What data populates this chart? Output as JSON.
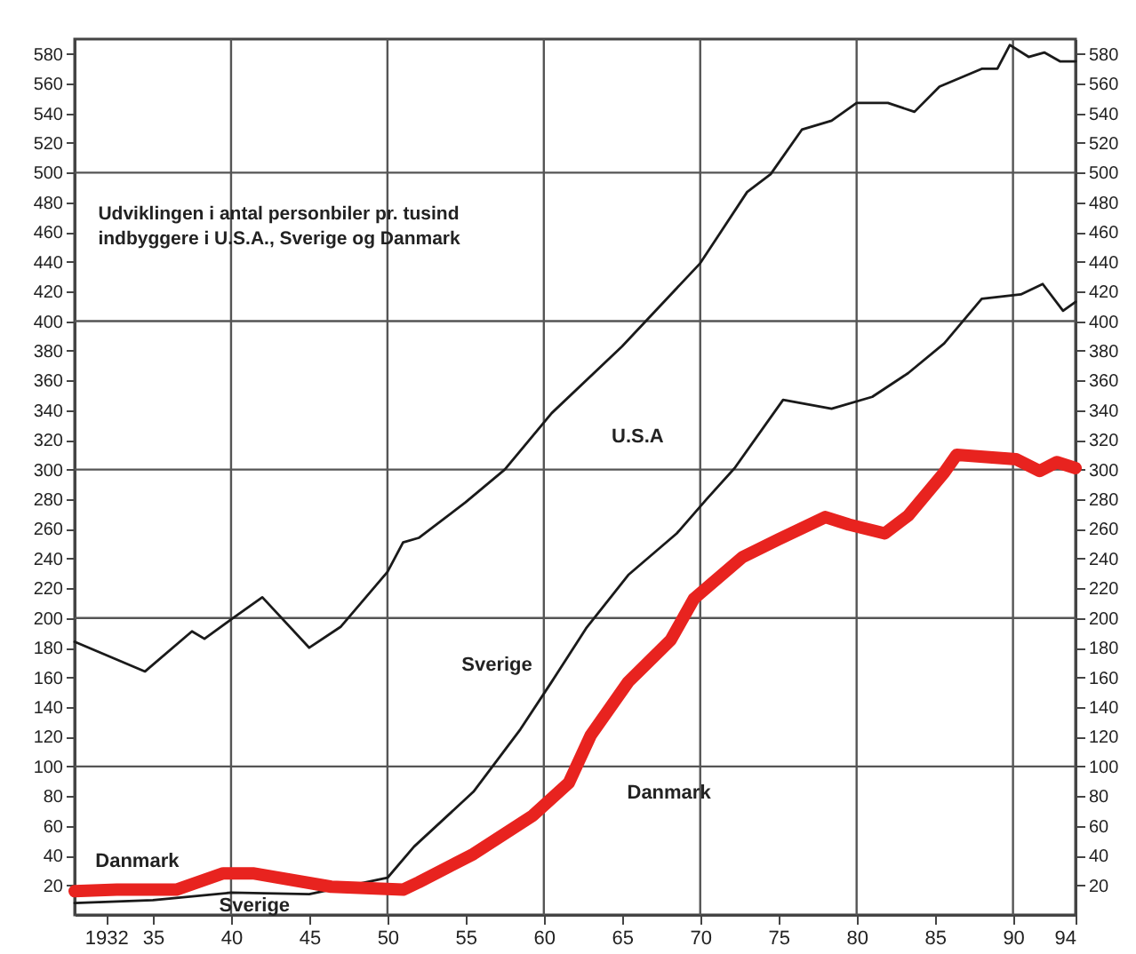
{
  "chart_data": {
    "type": "line",
    "title": "Udviklingen i antal personbiler pr. tusind\nindbyggere i U.S.A., Sverige og Danmark",
    "series": [
      {
        "name": "U.S.A",
        "color": "#1a1a1a",
        "x": [
          1930,
          1934.5,
          1937.5,
          1938.3,
          1940,
          1942,
          1945,
          1947,
          1950,
          1951,
          1952,
          1955,
          1957.5,
          1960.5,
          1965,
          1970,
          1973,
          1974.5,
          1976.5,
          1978.4,
          1980,
          1982,
          1983.7,
          1985.3,
          1988,
          1989,
          1989.8,
          1991,
          1992,
          1993,
          1994
        ],
        "values": [
          184,
          164,
          191,
          186,
          199,
          214,
          180,
          194,
          231,
          251,
          254,
          278,
          300,
          338,
          383,
          439,
          487,
          499,
          529,
          535,
          547,
          547,
          541,
          558,
          570,
          570,
          586,
          578,
          581,
          575,
          575
        ]
      },
      {
        "name": "Sverige",
        "color": "#1a1a1a",
        "x": [
          1930,
          1935,
          1940,
          1945,
          1950,
          1951.7,
          1955.5,
          1958.5,
          1960.5,
          1962.7,
          1965.4,
          1968.5,
          1970.4,
          1972.2,
          1975.3,
          1978.4,
          1981,
          1983.3,
          1985.6,
          1988,
          1990.5,
          1991.9,
          1993.2,
          1994
        ],
        "values": [
          8,
          10,
          15,
          14,
          25,
          46,
          83,
          125,
          157,
          193,
          229,
          257,
          280,
          301,
          347,
          341,
          349,
          365,
          385,
          415,
          418,
          425,
          407,
          413
        ]
      },
      {
        "name": "Danmark",
        "color": "#e8231f",
        "x": [
          1930,
          1932.7,
          1936.5,
          1939.5,
          1941.4,
          1946.4,
          1951,
          1952,
          1955.5,
          1959.3,
          1961.6,
          1963,
          1965.4,
          1968.1,
          1969.6,
          1972.7,
          1975,
          1978,
          1979.5,
          1981.8,
          1983.3,
          1985.6,
          1986.4,
          1990.2,
          1991.7,
          1992.8,
          1994
        ],
        "values": [
          16,
          17,
          17,
          28,
          28,
          19,
          17,
          22,
          41,
          67,
          89,
          121,
          157,
          185,
          213,
          241,
          253,
          268,
          263,
          257,
          269,
          298,
          310,
          307,
          299,
          305,
          301
        ]
      }
    ],
    "xlim": [
      1930,
      1994
    ],
    "xticks": [
      1932,
      {
        "value": 1935,
        "label": "35"
      },
      {
        "value": 1940,
        "label": "40"
      },
      {
        "value": 1945,
        "label": "45"
      },
      {
        "value": 1950,
        "label": "50"
      },
      {
        "value": 1955,
        "label": "55"
      },
      {
        "value": 1960,
        "label": "60"
      },
      {
        "value": 1965,
        "label": "65"
      },
      {
        "value": 1970,
        "label": "70"
      },
      {
        "value": 1975,
        "label": "75"
      },
      {
        "value": 1980,
        "label": "80"
      },
      {
        "value": 1985,
        "label": "85"
      },
      {
        "value": 1990,
        "label": "90"
      },
      {
        "value": 1994,
        "label": "94"
      }
    ],
    "ylim": [
      0,
      590
    ],
    "yticks": [
      20,
      40,
      60,
      80,
      100,
      120,
      140,
      160,
      180,
      200,
      220,
      240,
      260,
      280,
      300,
      320,
      340,
      360,
      380,
      400,
      420,
      440,
      460,
      480,
      500,
      520,
      540,
      560,
      580
    ],
    "y2lim": [
      0,
      590
    ],
    "y2ticks": [
      20,
      40,
      60,
      80,
      100,
      120,
      140,
      160,
      180,
      200,
      220,
      240,
      260,
      280,
      300,
      320,
      340,
      360,
      380,
      400,
      420,
      440,
      460,
      480,
      500,
      520,
      540,
      560,
      580
    ],
    "grid": true,
    "legend": false
  }
}
